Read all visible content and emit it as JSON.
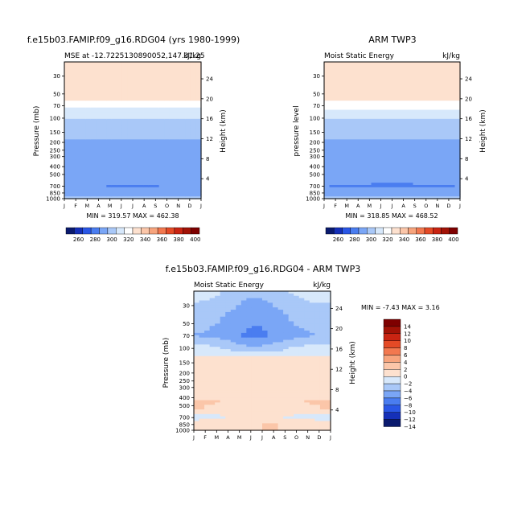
{
  "colors": {
    "model_scale": [
      "#0a1a6e",
      "#1530b8",
      "#2a57e6",
      "#4a7df0",
      "#7aa6f6",
      "#a9c8f8",
      "#d7e8fb",
      "#ffffff",
      "#fde1cf",
      "#fbc6a9",
      "#f7a47d",
      "#f2784f",
      "#e44a26",
      "#c92412",
      "#a21206",
      "#7e0000"
    ],
    "diff_scale": [
      "#0a1a6e",
      "#1530b8",
      "#2a57e6",
      "#4a7df0",
      "#7aa6f6",
      "#a9c8f8",
      "#d7e8fb",
      "#fde1cf",
      "#fbc6a9",
      "#f7a47d",
      "#f2784f",
      "#e44a26",
      "#c92412",
      "#a21206",
      "#7e0000"
    ]
  },
  "panels": {
    "model": {
      "title": "f.e15b03.FAMIP.f09_g16.RDG04 (yrs 1980-1999)",
      "left_sub": "MSE at -12.7225130890052,147.31.25",
      "right_sub": "kJ/kg",
      "ylabel": "Pressure (mb)",
      "ylabel_right": "Height (km)",
      "minmax": "MIN = 319.57 MAX = 462.38"
    },
    "obs": {
      "title": "ARM TWP3",
      "left_sub": "Moist Static Energy",
      "right_sub": "kJ/kg",
      "ylabel": "pressure level",
      "ylabel_right": "Height (km)",
      "minmax": "MIN = 318.85 MAX = 468.52"
    },
    "diff": {
      "title": "f.e15b03.FAMIP.f09_g16.RDG04 - ARM TWP3",
      "left_sub": "Moist Static Energy",
      "right_sub": "kJ/kg",
      "ylabel": "Pressure (mb)",
      "ylabel_right": "Height (km)",
      "minmax": "MIN =   -7.43 MAX =    3.16"
    }
  },
  "chart_data": [
    {
      "type": "heatmap",
      "name_ref": "model",
      "x": [
        "J",
        "F",
        "M",
        "A",
        "M",
        "J",
        "J",
        "A",
        "S",
        "O",
        "N",
        "D",
        "J"
      ],
      "pressure_ticks": [
        30,
        50,
        70,
        100,
        150,
        200,
        250,
        300,
        400,
        500,
        700,
        850,
        1000
      ],
      "height_ticks": [
        24,
        20,
        16,
        12,
        8,
        4
      ],
      "units": "kJ/kg",
      "min": 319.57,
      "max": 462.38,
      "levels": [
        260,
        280,
        300,
        320,
        340,
        360,
        380,
        400
      ],
      "profile": [
        {
          "p": 20,
          "v": 480
        },
        {
          "p": 50,
          "v": 420
        },
        {
          "p": 70,
          "v": 385
        },
        {
          "p": 100,
          "v": 360
        },
        {
          "p": 150,
          "v": 345
        },
        {
          "p": 200,
          "v": 337
        },
        {
          "p": 300,
          "v": 333
        },
        {
          "p": 400,
          "v": 330
        },
        {
          "p": 500,
          "v": 327
        },
        {
          "p": 700,
          "v": 321
        },
        {
          "p": 850,
          "v": 328
        },
        {
          "p": 1000,
          "v": 345
        }
      ]
    },
    {
      "type": "heatmap",
      "name_ref": "obs",
      "x": [
        "J",
        "F",
        "M",
        "A",
        "M",
        "J",
        "J",
        "A",
        "S",
        "O",
        "N",
        "D",
        "J"
      ],
      "pressure_ticks": [
        30,
        50,
        70,
        100,
        150,
        200,
        250,
        300,
        400,
        500,
        700,
        850,
        1000
      ],
      "height_ticks": [
        24,
        20,
        16,
        12,
        8,
        4
      ],
      "units": "kJ/kg",
      "min": 318.85,
      "max": 468.52,
      "levels": [
        260,
        280,
        300,
        320,
        340,
        360,
        380,
        400
      ],
      "profile": [
        {
          "p": 20,
          "v": 485
        },
        {
          "p": 50,
          "v": 423
        },
        {
          "p": 70,
          "v": 388
        },
        {
          "p": 100,
          "v": 362
        },
        {
          "p": 150,
          "v": 346
        },
        {
          "p": 200,
          "v": 338
        },
        {
          "p": 300,
          "v": 334
        },
        {
          "p": 400,
          "v": 331
        },
        {
          "p": 500,
          "v": 327
        },
        {
          "p": 700,
          "v": 320
        },
        {
          "p": 850,
          "v": 328
        },
        {
          "p": 1000,
          "v": 345
        }
      ]
    },
    {
      "type": "heatmap",
      "name_ref": "diff",
      "x": [
        "J",
        "F",
        "M",
        "A",
        "M",
        "J",
        "J",
        "A",
        "S",
        "O",
        "N",
        "D",
        "J"
      ],
      "pressure_ticks": [
        30,
        50,
        70,
        100,
        150,
        200,
        250,
        300,
        400,
        500,
        700,
        850,
        1000
      ],
      "height_ticks": [
        24,
        20,
        16,
        12,
        8,
        4
      ],
      "units": "kJ/kg",
      "min": -7.43,
      "max": 3.16,
      "levels": [
        -14,
        -12,
        -10,
        -8,
        -6,
        -4,
        -2,
        0,
        2,
        4,
        6,
        8,
        10,
        12,
        14
      ],
      "legend_labels": [
        "14",
        "12",
        "10",
        "8",
        "6",
        "4",
        "2",
        "0",
        "−2",
        "−4",
        "−6",
        "−8",
        "−10",
        "−12",
        "−14"
      ],
      "profile": [
        {
          "p": 20,
          "v": -3
        },
        {
          "p": 40,
          "v": -5
        },
        {
          "p": 70,
          "v": -6
        },
        {
          "p": 100,
          "v": -3
        },
        {
          "p": 150,
          "v": -1
        },
        {
          "p": 300,
          "v": -1
        },
        {
          "p": 450,
          "v": -0.5
        },
        {
          "p": 550,
          "v": -1.5
        },
        {
          "p": 700,
          "v": -2.5
        },
        {
          "p": 850,
          "v": -1
        },
        {
          "p": 1000,
          "v": -1
        }
      ]
    }
  ]
}
